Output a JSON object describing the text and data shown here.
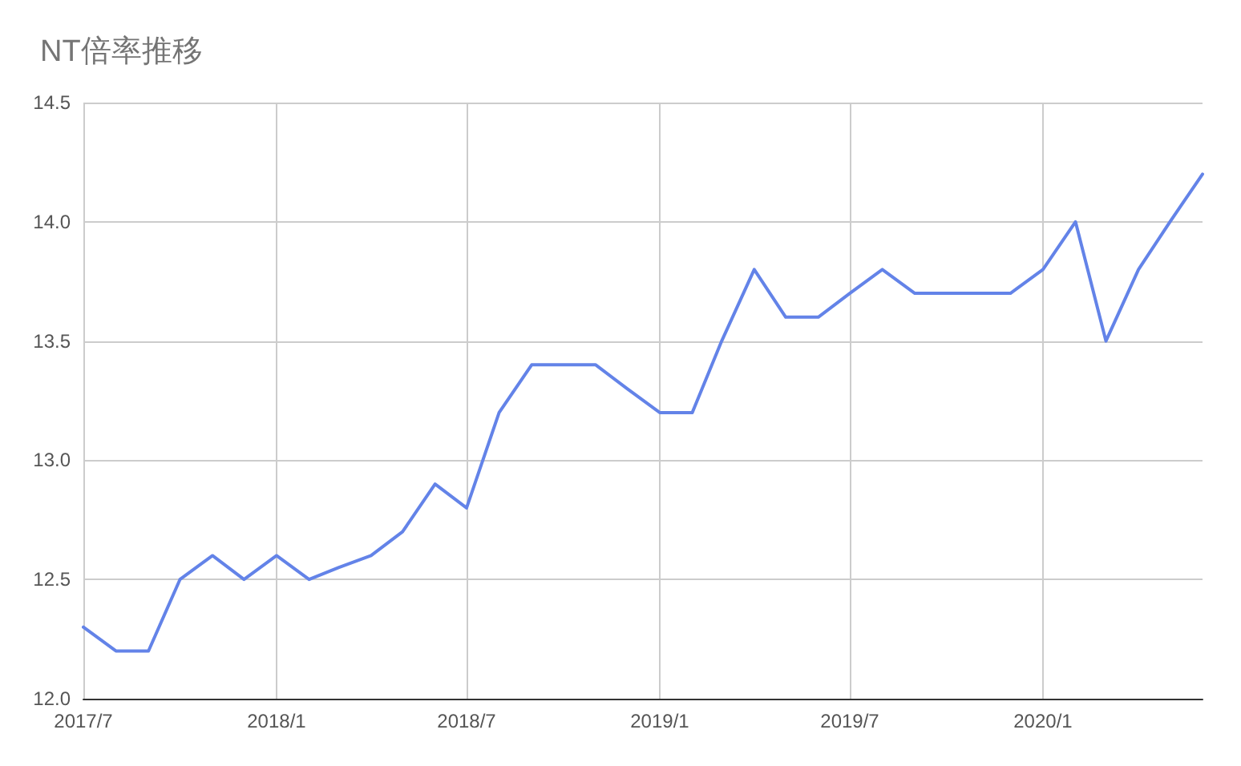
{
  "chart_data": {
    "type": "line",
    "title": "NT倍率推移",
    "x": [
      "2017-07",
      "2017-08",
      "2017-09",
      "2017-10",
      "2017-11",
      "2017-12",
      "2018-01",
      "2018-02",
      "2018-03",
      "2018-04",
      "2018-05",
      "2018-06",
      "2018-07",
      "2018-08",
      "2018-09",
      "2018-10",
      "2018-11",
      "2018-12",
      "2019-01",
      "2019-02",
      "2019-03",
      "2019-04",
      "2019-05",
      "2019-06",
      "2019-07",
      "2019-08",
      "2019-09",
      "2019-10",
      "2019-11",
      "2019-12",
      "2020-01",
      "2020-02",
      "2020-03",
      "2020-04",
      "2020-05",
      "2020-06"
    ],
    "series": [
      {
        "color": "#6383e8",
        "values": [
          12.3,
          12.2,
          12.2,
          12.5,
          12.6,
          12.5,
          12.6,
          12.5,
          12.55,
          12.6,
          12.7,
          12.9,
          12.8,
          13.2,
          13.4,
          13.4,
          13.4,
          13.3,
          13.2,
          13.2,
          13.5,
          13.8,
          13.6,
          13.6,
          13.7,
          13.8,
          13.7,
          13.7,
          13.7,
          13.7,
          13.8,
          14.0,
          13.5,
          13.8,
          14.0,
          14.2
        ]
      }
    ],
    "xlim": [
      "2017-07",
      "2020-06"
    ],
    "xticks": [
      {
        "value": "2017-07",
        "label": "2017/7"
      },
      {
        "value": "2018-01",
        "label": "2018/1"
      },
      {
        "value": "2018-07",
        "label": "2018/7"
      },
      {
        "value": "2019-01",
        "label": "2019/1"
      },
      {
        "value": "2019-07",
        "label": "2019/7"
      },
      {
        "value": "2020-01",
        "label": "2020/1"
      }
    ],
    "ylim": [
      12,
      14.5
    ],
    "yticks": [
      {
        "value": 12,
        "label": "12.0"
      },
      {
        "value": 12.5,
        "label": "12.5"
      },
      {
        "value": 13,
        "label": "13.0"
      },
      {
        "value": 13.5,
        "label": "13.5"
      },
      {
        "value": 14,
        "label": "14.0"
      },
      {
        "value": 14.5,
        "label": "14.5"
      }
    ],
    "grid": true,
    "marker": "none",
    "line_style": "solid"
  }
}
